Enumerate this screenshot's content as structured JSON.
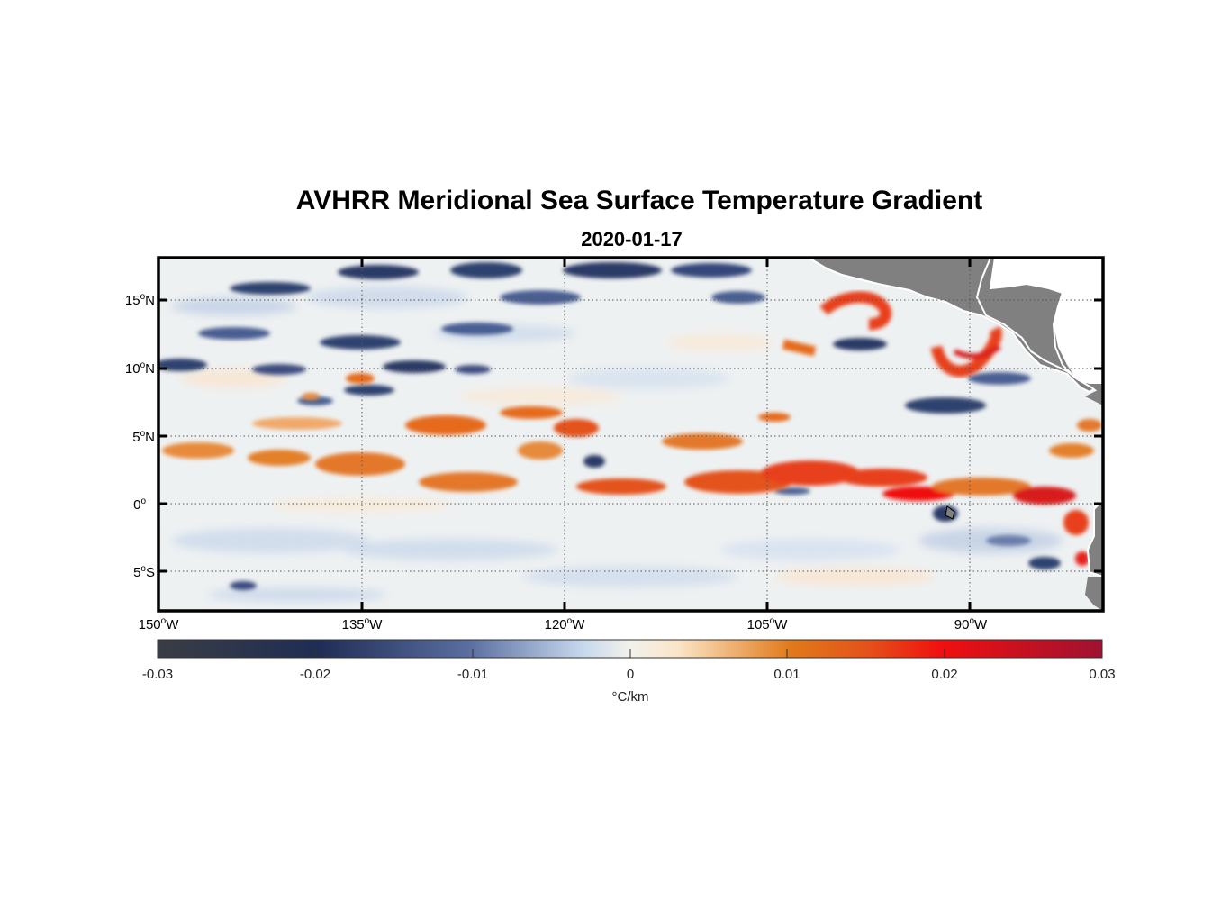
{
  "title": "AVHRR Meridional Sea Surface Temperature Gradient",
  "date": "2020-01-17",
  "chart_data": {
    "type": "heatmap",
    "x_ticks": [
      {
        "value": -150,
        "deg": "150",
        "hemi": "W"
      },
      {
        "value": -135,
        "deg": "135",
        "hemi": "W"
      },
      {
        "value": -120,
        "deg": "120",
        "hemi": "W"
      },
      {
        "value": -105,
        "deg": "105",
        "hemi": "W"
      },
      {
        "value": -90,
        "deg": "90",
        "hemi": "W"
      }
    ],
    "y_ticks": [
      {
        "value": 15,
        "deg": "15",
        "hemi": "N"
      },
      {
        "value": 10,
        "deg": "10",
        "hemi": "N"
      },
      {
        "value": 5,
        "deg": "5",
        "hemi": "N"
      },
      {
        "value": 0,
        "deg": "0",
        "hemi": ""
      },
      {
        "value": -5,
        "deg": "5",
        "hemi": "S"
      }
    ],
    "xlim": [
      -150,
      -80
    ],
    "ylim": [
      -8,
      18
    ],
    "colorbar": {
      "ticks": [
        "-0.03",
        "-0.02",
        "-0.01",
        "0",
        "0.01",
        "0.02",
        "0.03"
      ],
      "range": [
        -0.03,
        0.03
      ],
      "unit": "°C/km",
      "colors": [
        "#3a3d44",
        "#1f2d55",
        "#5a6fa0",
        "#c6d8ec",
        "#f2f1ec",
        "#fbe6c8",
        "#e07a1a",
        "#e4531a",
        "#f01010",
        "#9e1231"
      ]
    },
    "grid": true,
    "land_color": "#808080",
    "features": [
      {
        "name": "equatorial warm band",
        "lat": 2,
        "sign": "positive"
      },
      {
        "name": "tehuantepec eddy",
        "lat": 13,
        "sign": "positive"
      },
      {
        "name": "papagayo eddy",
        "lat": 10.5,
        "sign": "positive"
      }
    ]
  }
}
